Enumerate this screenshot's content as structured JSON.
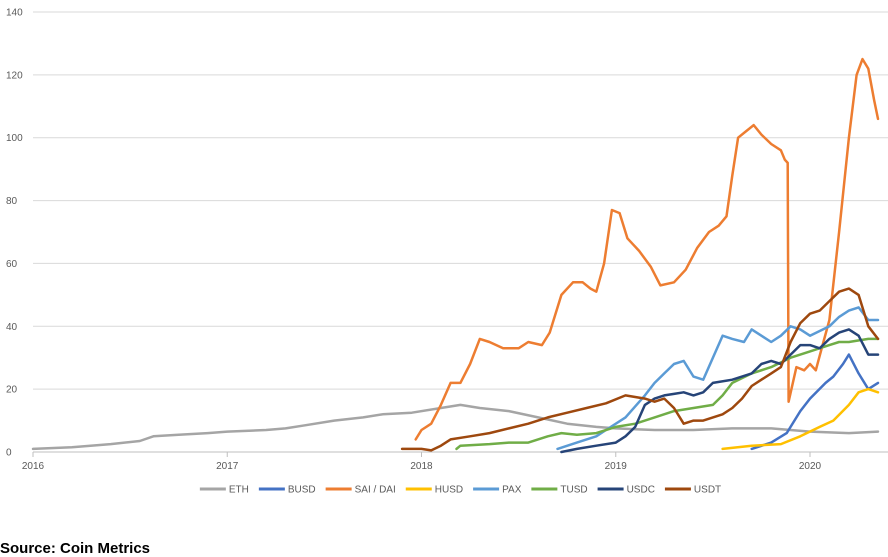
{
  "source": "Source: Coin Metrics",
  "chart_data": {
    "type": "line",
    "title": "",
    "xlabel": "",
    "ylabel": "",
    "xlim": [
      2016.0,
      2020.35
    ],
    "ylim": [
      0,
      140
    ],
    "yticks": [
      0,
      20,
      40,
      60,
      80,
      100,
      120,
      140
    ],
    "xticks": [
      2016,
      2017,
      2018,
      2019,
      2020
    ],
    "xtick_labels": [
      "2016",
      "2017",
      "2018",
      "2019",
      "2020"
    ],
    "grid": "horizontal",
    "legend_position": "bottom",
    "series": [
      {
        "name": "ETH",
        "color": "#a5a5a5",
        "points": [
          [
            2016.0,
            1
          ],
          [
            2016.2,
            1.5
          ],
          [
            2016.4,
            2.5
          ],
          [
            2016.55,
            3.5
          ],
          [
            2016.62,
            5
          ],
          [
            2016.75,
            5.5
          ],
          [
            2016.9,
            6
          ],
          [
            2017.0,
            6.5
          ],
          [
            2017.2,
            7
          ],
          [
            2017.3,
            7.5
          ],
          [
            2017.4,
            8.5
          ],
          [
            2017.55,
            10
          ],
          [
            2017.7,
            11
          ],
          [
            2017.8,
            12
          ],
          [
            2017.95,
            12.5
          ],
          [
            2018.1,
            14
          ],
          [
            2018.2,
            15
          ],
          [
            2018.3,
            14
          ],
          [
            2018.45,
            13
          ],
          [
            2018.6,
            11
          ],
          [
            2018.75,
            9
          ],
          [
            2018.9,
            8
          ],
          [
            2019.0,
            7.5
          ],
          [
            2019.2,
            7
          ],
          [
            2019.4,
            7
          ],
          [
            2019.6,
            7.5
          ],
          [
            2019.8,
            7.5
          ],
          [
            2019.9,
            7
          ],
          [
            2020.0,
            6.5
          ],
          [
            2020.2,
            6
          ],
          [
            2020.35,
            6.5
          ]
        ]
      },
      {
        "name": "BUSD",
        "color": "#4472c4",
        "points": [
          [
            2019.7,
            1
          ],
          [
            2019.8,
            3
          ],
          [
            2019.88,
            6
          ],
          [
            2019.95,
            13
          ],
          [
            2020.0,
            17
          ],
          [
            2020.08,
            22
          ],
          [
            2020.12,
            24
          ],
          [
            2020.17,
            28
          ],
          [
            2020.2,
            31
          ],
          [
            2020.25,
            25
          ],
          [
            2020.3,
            20
          ],
          [
            2020.35,
            22
          ]
        ]
      },
      {
        "name": "SAI / DAI",
        "color": "#ed7d31",
        "points": [
          [
            2017.97,
            4
          ],
          [
            2018.0,
            7
          ],
          [
            2018.05,
            9
          ],
          [
            2018.1,
            15
          ],
          [
            2018.15,
            22
          ],
          [
            2018.2,
            22
          ],
          [
            2018.25,
            28
          ],
          [
            2018.3,
            36
          ],
          [
            2018.35,
            35
          ],
          [
            2018.42,
            33
          ],
          [
            2018.5,
            33
          ],
          [
            2018.55,
            35
          ],
          [
            2018.62,
            34
          ],
          [
            2018.66,
            38
          ],
          [
            2018.72,
            50
          ],
          [
            2018.78,
            54
          ],
          [
            2018.83,
            54
          ],
          [
            2018.87,
            52
          ],
          [
            2018.9,
            51
          ],
          [
            2018.94,
            60
          ],
          [
            2018.98,
            77
          ],
          [
            2019.02,
            76
          ],
          [
            2019.06,
            68
          ],
          [
            2019.12,
            64
          ],
          [
            2019.18,
            59
          ],
          [
            2019.23,
            53
          ],
          [
            2019.3,
            54
          ],
          [
            2019.36,
            58
          ],
          [
            2019.42,
            65
          ],
          [
            2019.48,
            70
          ],
          [
            2019.53,
            72
          ],
          [
            2019.57,
            75
          ],
          [
            2019.6,
            88
          ],
          [
            2019.63,
            100
          ],
          [
            2019.67,
            102
          ],
          [
            2019.71,
            104
          ],
          [
            2019.75,
            101
          ],
          [
            2019.8,
            98
          ],
          [
            2019.85,
            96
          ],
          [
            2019.87,
            93
          ],
          [
            2019.885,
            92
          ],
          [
            2019.89,
            16
          ],
          [
            2019.93,
            27
          ],
          [
            2019.97,
            26
          ],
          [
            2020.0,
            28
          ],
          [
            2020.03,
            26
          ],
          [
            2020.06,
            33
          ],
          [
            2020.1,
            42
          ],
          [
            2020.15,
            70
          ],
          [
            2020.2,
            100
          ],
          [
            2020.24,
            120
          ],
          [
            2020.27,
            125
          ],
          [
            2020.3,
            122
          ],
          [
            2020.33,
            112
          ],
          [
            2020.35,
            106
          ]
        ]
      },
      {
        "name": "HUSD",
        "color": "#ffc000",
        "points": [
          [
            2019.55,
            1
          ],
          [
            2019.7,
            2
          ],
          [
            2019.85,
            2.5
          ],
          [
            2019.95,
            5
          ],
          [
            2020.05,
            8
          ],
          [
            2020.12,
            10
          ],
          [
            2020.2,
            15
          ],
          [
            2020.25,
            19
          ],
          [
            2020.3,
            20
          ],
          [
            2020.35,
            19
          ]
        ]
      },
      {
        "name": "PAX",
        "color": "#5b9bd5",
        "points": [
          [
            2018.7,
            1
          ],
          [
            2018.8,
            3
          ],
          [
            2018.9,
            5
          ],
          [
            2018.95,
            7
          ],
          [
            2019.05,
            11
          ],
          [
            2019.15,
            18
          ],
          [
            2019.2,
            22
          ],
          [
            2019.25,
            25
          ],
          [
            2019.3,
            28
          ],
          [
            2019.35,
            29
          ],
          [
            2019.4,
            24
          ],
          [
            2019.45,
            23
          ],
          [
            2019.5,
            30
          ],
          [
            2019.55,
            37
          ],
          [
            2019.6,
            36
          ],
          [
            2019.66,
            35
          ],
          [
            2019.7,
            39
          ],
          [
            2019.75,
            37
          ],
          [
            2019.8,
            35
          ],
          [
            2019.85,
            37
          ],
          [
            2019.9,
            40
          ],
          [
            2019.95,
            39
          ],
          [
            2020.0,
            37
          ],
          [
            2020.1,
            40
          ],
          [
            2020.15,
            43
          ],
          [
            2020.2,
            45
          ],
          [
            2020.25,
            46
          ],
          [
            2020.3,
            42
          ],
          [
            2020.35,
            42
          ]
        ]
      },
      {
        "name": "TUSD",
        "color": "#70ad47",
        "points": [
          [
            2018.18,
            1
          ],
          [
            2018.2,
            2
          ],
          [
            2018.35,
            2.5
          ],
          [
            2018.45,
            3
          ],
          [
            2018.55,
            3
          ],
          [
            2018.65,
            5
          ],
          [
            2018.72,
            6
          ],
          [
            2018.8,
            5.5
          ],
          [
            2018.9,
            6
          ],
          [
            2019.0,
            8
          ],
          [
            2019.1,
            9
          ],
          [
            2019.2,
            11
          ],
          [
            2019.3,
            13
          ],
          [
            2019.4,
            14
          ],
          [
            2019.5,
            15
          ],
          [
            2019.55,
            18
          ],
          [
            2019.6,
            22
          ],
          [
            2019.7,
            25
          ],
          [
            2019.8,
            27
          ],
          [
            2019.9,
            30
          ],
          [
            2020.0,
            32
          ],
          [
            2020.1,
            34
          ],
          [
            2020.15,
            35
          ],
          [
            2020.2,
            35
          ],
          [
            2020.3,
            36
          ],
          [
            2020.35,
            36
          ]
        ]
      },
      {
        "name": "USDC",
        "color": "#264478",
        "points": [
          [
            2018.72,
            0
          ],
          [
            2018.8,
            1
          ],
          [
            2018.9,
            2
          ],
          [
            2019.0,
            3
          ],
          [
            2019.05,
            5
          ],
          [
            2019.1,
            8
          ],
          [
            2019.15,
            15
          ],
          [
            2019.2,
            17
          ],
          [
            2019.25,
            18
          ],
          [
            2019.3,
            18.5
          ],
          [
            2019.35,
            19
          ],
          [
            2019.4,
            18
          ],
          [
            2019.45,
            19
          ],
          [
            2019.5,
            22
          ],
          [
            2019.6,
            23
          ],
          [
            2019.7,
            25
          ],
          [
            2019.75,
            28
          ],
          [
            2019.8,
            29
          ],
          [
            2019.85,
            28
          ],
          [
            2019.9,
            31
          ],
          [
            2019.95,
            34
          ],
          [
            2020.0,
            34
          ],
          [
            2020.05,
            33
          ],
          [
            2020.1,
            36
          ],
          [
            2020.15,
            38
          ],
          [
            2020.2,
            39
          ],
          [
            2020.25,
            37
          ],
          [
            2020.3,
            31
          ],
          [
            2020.35,
            31
          ]
        ]
      },
      {
        "name": "USDT",
        "color": "#9e480e",
        "points": [
          [
            2017.9,
            1
          ],
          [
            2018.0,
            1
          ],
          [
            2018.05,
            0.5
          ],
          [
            2018.1,
            2
          ],
          [
            2018.15,
            4
          ],
          [
            2018.25,
            5
          ],
          [
            2018.35,
            6
          ],
          [
            2018.45,
            7.5
          ],
          [
            2018.55,
            9
          ],
          [
            2018.65,
            11
          ],
          [
            2018.75,
            12.5
          ],
          [
            2018.85,
            14
          ],
          [
            2018.95,
            15.5
          ],
          [
            2019.05,
            18
          ],
          [
            2019.1,
            17.5
          ],
          [
            2019.15,
            17
          ],
          [
            2019.2,
            16
          ],
          [
            2019.25,
            17
          ],
          [
            2019.3,
            14
          ],
          [
            2019.35,
            9
          ],
          [
            2019.4,
            10
          ],
          [
            2019.45,
            10
          ],
          [
            2019.55,
            12
          ],
          [
            2019.6,
            14
          ],
          [
            2019.65,
            17
          ],
          [
            2019.7,
            21
          ],
          [
            2019.75,
            23
          ],
          [
            2019.8,
            25
          ],
          [
            2019.85,
            27
          ],
          [
            2019.9,
            35
          ],
          [
            2019.95,
            41
          ],
          [
            2020.0,
            44
          ],
          [
            2020.05,
            45
          ],
          [
            2020.1,
            48
          ],
          [
            2020.15,
            51
          ],
          [
            2020.2,
            52
          ],
          [
            2020.25,
            50
          ],
          [
            2020.3,
            40
          ],
          [
            2020.35,
            36
          ]
        ]
      }
    ]
  }
}
